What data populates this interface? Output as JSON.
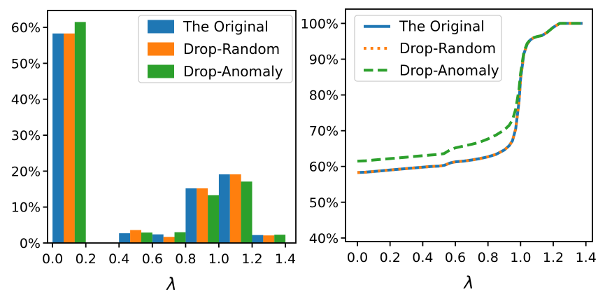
{
  "figure": {
    "background": "#ffffff",
    "axis_color": "#000000"
  },
  "chart_data": [
    {
      "type": "bar",
      "title": "",
      "xlabel": "λ",
      "ylabel": "",
      "xlim": [
        -0.03,
        1.463
      ],
      "ylim": [
        0,
        64.7
      ],
      "xticks": [
        0.0,
        0.2,
        0.4,
        0.6,
        0.8,
        1.0,
        1.2,
        1.4
      ],
      "xtick_labels": [
        "0.0",
        "0.2",
        "0.4",
        "0.6",
        "0.8",
        "1.0",
        "1.2",
        "1.4"
      ],
      "yticks": [
        0,
        10,
        20,
        30,
        40,
        50,
        60
      ],
      "ytick_labels": [
        "0%",
        "10%",
        "20%",
        "30%",
        "40%",
        "50%",
        "60%"
      ],
      "grid": false,
      "legend_position": "upper right",
      "bin_edges": [
        0.0,
        0.2,
        0.4,
        0.6,
        0.8,
        1.0,
        1.2
      ],
      "bin_width": 0.2,
      "series": [
        {
          "name": "The Original",
          "color": "#1f77b4",
          "values": [
            58.3,
            0,
            2.7,
            2.4,
            15.2,
            19.1,
            2.2
          ]
        },
        {
          "name": "Drop-Random",
          "color": "#ff7f0e",
          "values": [
            58.3,
            0,
            3.6,
            1.7,
            15.2,
            19.1,
            2.1
          ]
        },
        {
          "name": "Drop-Anomaly",
          "color": "#2ca02c",
          "values": [
            61.5,
            0,
            2.9,
            3.0,
            13.3,
            17.1,
            2.3
          ]
        }
      ]
    },
    {
      "type": "line",
      "title": "",
      "xlabel": "λ",
      "ylabel": "",
      "xlim": [
        -0.073,
        1.44
      ],
      "ylim": [
        39.0,
        104.0
      ],
      "xticks": [
        0.0,
        0.2,
        0.4,
        0.6,
        0.8,
        1.0,
        1.2,
        1.4
      ],
      "xtick_labels": [
        "0.0",
        "0.2",
        "0.4",
        "0.6",
        "0.8",
        "1.0",
        "1.2",
        "1.4"
      ],
      "yticks": [
        40,
        50,
        60,
        70,
        80,
        90,
        100
      ],
      "ytick_labels": [
        "40%",
        "50%",
        "60%",
        "70%",
        "80%",
        "90%",
        "100%"
      ],
      "grid": false,
      "legend_position": "upper left",
      "x": [
        0.0,
        0.05,
        0.1,
        0.15,
        0.2,
        0.25,
        0.3,
        0.35,
        0.4,
        0.45,
        0.5,
        0.53,
        0.57,
        0.6,
        0.65,
        0.7,
        0.75,
        0.8,
        0.85,
        0.9,
        0.93,
        0.95,
        0.97,
        0.99,
        1.0,
        1.02,
        1.04,
        1.06,
        1.08,
        1.1,
        1.13,
        1.16,
        1.2,
        1.24,
        1.3,
        1.38
      ],
      "series": [
        {
          "name": "The Original",
          "color": "#1f77b4",
          "style": "solid",
          "y": [
            58.3,
            58.4,
            58.6,
            58.8,
            59.0,
            59.2,
            59.4,
            59.6,
            59.8,
            60.0,
            60.1,
            60.3,
            61.0,
            61.3,
            61.5,
            61.8,
            62.2,
            62.7,
            63.4,
            64.6,
            65.8,
            67.2,
            70.5,
            78.0,
            84.5,
            91.5,
            94.2,
            95.4,
            96.0,
            96.3,
            96.6,
            97.4,
            98.9,
            100.0,
            100.0,
            100.0
          ]
        },
        {
          "name": "Drop-Random",
          "color": "#ff7f0e",
          "style": "dotted",
          "y": [
            58.3,
            58.4,
            58.6,
            58.8,
            59.0,
            59.2,
            59.4,
            59.6,
            59.8,
            60.0,
            60.1,
            60.3,
            61.0,
            61.3,
            61.5,
            61.8,
            62.2,
            62.7,
            63.4,
            64.6,
            65.8,
            67.2,
            70.5,
            78.0,
            84.5,
            91.5,
            94.2,
            95.4,
            96.0,
            96.3,
            96.6,
            97.4,
            98.9,
            100.0,
            100.0,
            100.0
          ]
        },
        {
          "name": "Drop-Anomaly",
          "color": "#2ca02c",
          "style": "dashed",
          "y": [
            61.5,
            61.6,
            61.8,
            62.0,
            62.2,
            62.4,
            62.6,
            62.8,
            63.0,
            63.2,
            63.4,
            63.6,
            64.7,
            65.2,
            65.7,
            66.2,
            66.8,
            67.7,
            68.8,
            70.2,
            71.5,
            73.0,
            76.0,
            81.5,
            86.0,
            92.0,
            94.4,
            95.5,
            96.0,
            96.3,
            96.6,
            97.4,
            98.9,
            100.0,
            100.0,
            100.0
          ]
        }
      ]
    }
  ]
}
